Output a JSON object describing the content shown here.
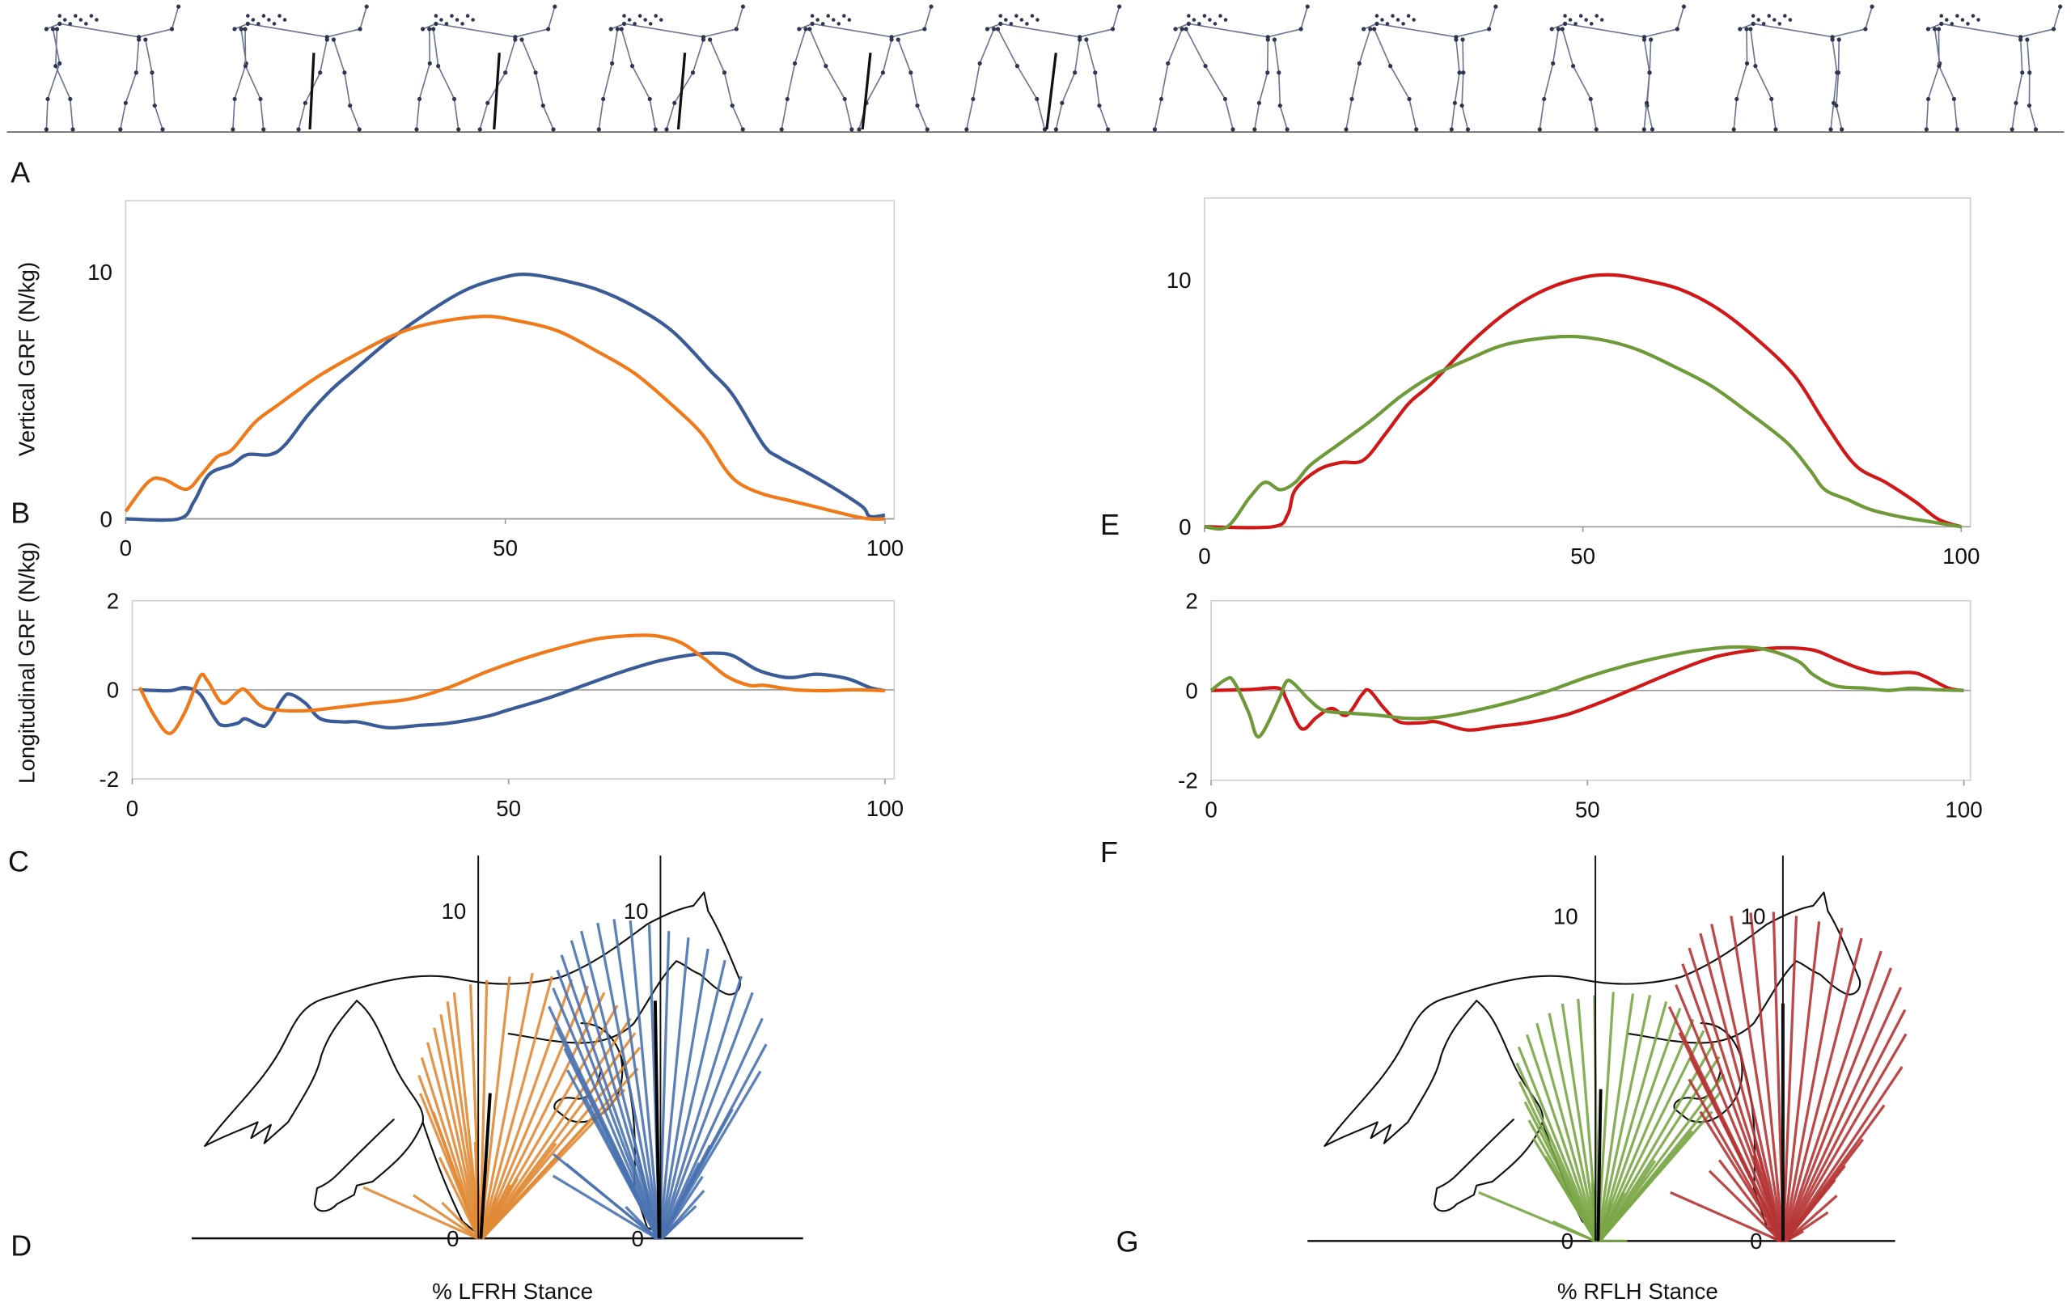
{
  "panel_labels": {
    "A": "A",
    "B": "B",
    "C": "C",
    "D": "D",
    "E": "E",
    "F": "F",
    "G": "G"
  },
  "colors": {
    "blue": "#3b5b98",
    "orange": "#f07a1a",
    "red": "#d01818",
    "green": "#6e9a3a",
    "fan_blue": "#4a72b0",
    "fan_orange": "#e08a35",
    "fan_red": "#b53434",
    "fan_green": "#7aa646"
  },
  "icons": {
    "stick_figures": "horse-stick-figure-sequence",
    "horse_drawing": "horse-outline"
  },
  "chart_data": [
    {
      "id": "B",
      "type": "line",
      "ylabel": "Vertical GRF (N/kg)",
      "xlabel": "",
      "xlim": [
        0,
        100
      ],
      "ylim": [
        0,
        13
      ],
      "xticks": [
        "0",
        "50",
        "100"
      ],
      "yticks": [
        "0",
        "10"
      ],
      "grid": false,
      "series": [
        {
          "color": "#3b5b98",
          "x": [
            0,
            7,
            9,
            11,
            14,
            16,
            19,
            21,
            24,
            27,
            30,
            35,
            40,
            45,
            50,
            53,
            57,
            62,
            67,
            72,
            77,
            80,
            84,
            86,
            89,
            93,
            97,
            98,
            100
          ],
          "y": [
            0,
            0,
            0.7,
            1.8,
            2.2,
            2.6,
            2.6,
            3.0,
            4.2,
            5.2,
            6.0,
            7.3,
            8.4,
            9.3,
            9.8,
            9.9,
            9.7,
            9.3,
            8.6,
            7.6,
            6.0,
            5.0,
            3.0,
            2.5,
            2.0,
            1.3,
            0.5,
            0.1,
            0.15
          ]
        },
        {
          "color": "#f07a1a",
          "x": [
            0,
            3,
            5,
            8,
            10,
            12,
            14,
            17,
            20,
            25,
            30,
            35,
            40,
            47,
            52,
            57,
            62,
            67,
            72,
            76,
            79,
            81,
            84,
            88,
            92,
            96,
            98,
            100
          ],
          "y": [
            0.3,
            1.5,
            1.6,
            1.2,
            1.8,
            2.5,
            2.8,
            3.9,
            4.6,
            5.7,
            6.6,
            7.4,
            7.9,
            8.2,
            8.0,
            7.6,
            6.8,
            5.9,
            4.6,
            3.4,
            2.0,
            1.4,
            1.0,
            0.7,
            0.4,
            0.1,
            0,
            0
          ]
        }
      ]
    },
    {
      "id": "C",
      "type": "line",
      "ylabel": "Longitudinal GRF (N/kg)",
      "xlabel": "",
      "xlim": [
        0,
        100
      ],
      "ylim": [
        -2,
        2
      ],
      "xticks": [
        "0",
        "50",
        "100"
      ],
      "yticks": [
        "-2",
        "0",
        "2"
      ],
      "grid": false,
      "series": [
        {
          "color": "#3b5b98",
          "x": [
            1,
            5,
            7,
            9,
            11,
            12,
            14,
            15,
            17,
            18,
            20,
            21,
            23,
            25,
            28,
            30,
            34,
            38,
            42,
            47,
            50,
            55,
            60,
            65,
            70,
            75,
            78,
            80,
            83,
            86,
            88,
            91,
            95,
            98,
            100
          ],
          "y": [
            0,
            -0.02,
            0.05,
            -0.1,
            -0.65,
            -0.8,
            -0.75,
            -0.65,
            -0.8,
            -0.75,
            -0.2,
            -0.1,
            -0.3,
            -0.65,
            -0.72,
            -0.72,
            -0.85,
            -0.8,
            -0.75,
            -0.6,
            -0.45,
            -0.2,
            0.1,
            0.4,
            0.65,
            0.8,
            0.82,
            0.75,
            0.45,
            0.3,
            0.28,
            0.35,
            0.25,
            0.05,
            -0.02
          ]
        },
        {
          "color": "#f07a1a",
          "x": [
            1,
            3,
            5,
            7,
            9,
            10,
            12,
            14,
            15,
            17,
            19,
            23,
            27,
            32,
            37,
            42,
            47,
            52,
            57,
            62,
            67,
            70,
            73,
            76,
            79,
            82,
            84,
            88,
            92,
            96,
            100
          ],
          "y": [
            0.05,
            -0.6,
            -0.98,
            -0.5,
            0.3,
            0.2,
            -0.3,
            -0.05,
            0,
            -0.35,
            -0.45,
            -0.47,
            -0.4,
            -0.3,
            -0.2,
            0.05,
            0.4,
            0.7,
            0.95,
            1.15,
            1.22,
            1.2,
            1.05,
            0.7,
            0.3,
            0.1,
            0.1,
            0,
            -0.02,
            0,
            -0.02
          ]
        }
      ]
    },
    {
      "id": "E",
      "type": "line",
      "ylabel": "",
      "xlabel": "",
      "xlim": [
        0,
        100
      ],
      "ylim": [
        0,
        13
      ],
      "xticks": [
        "0",
        "50",
        "100"
      ],
      "yticks": [
        "0",
        "10"
      ],
      "grid": false,
      "series": [
        {
          "color": "#d01818",
          "x": [
            0,
            9,
            11,
            12,
            15,
            18,
            21,
            24,
            27,
            30,
            35,
            40,
            45,
            50,
            54,
            58,
            63,
            68,
            73,
            78,
            82,
            86,
            90,
            94,
            97,
            100
          ],
          "y": [
            0,
            0,
            0.5,
            1.5,
            2.3,
            2.6,
            2.7,
            3.8,
            5.0,
            5.8,
            7.4,
            8.7,
            9.6,
            10.1,
            10.2,
            10.0,
            9.6,
            8.8,
            7.6,
            6.1,
            4.2,
            2.5,
            1.8,
            1.0,
            0.3,
            0
          ]
        },
        {
          "color": "#6e9a3a",
          "x": [
            0,
            3,
            6,
            8,
            10,
            12,
            14,
            18,
            22,
            26,
            30,
            35,
            40,
            47,
            52,
            57,
            62,
            67,
            72,
            77,
            80,
            82,
            85,
            88,
            92,
            96,
            100
          ],
          "y": [
            0,
            0,
            1.2,
            1.8,
            1.5,
            1.8,
            2.5,
            3.4,
            4.3,
            5.3,
            6.1,
            6.8,
            7.4,
            7.7,
            7.6,
            7.2,
            6.5,
            5.7,
            4.6,
            3.4,
            2.3,
            1.5,
            1.1,
            0.7,
            0.4,
            0.2,
            0
          ]
        }
      ]
    },
    {
      "id": "F",
      "type": "line",
      "ylabel": "",
      "xlabel": "",
      "xlim": [
        0,
        100
      ],
      "ylim": [
        -2,
        2
      ],
      "xticks": [
        "0",
        "50",
        "100"
      ],
      "yticks": [
        "-2",
        "0",
        "2"
      ],
      "grid": false,
      "series": [
        {
          "color": "#d01818",
          "x": [
            0,
            5,
            9,
            10,
            12,
            14,
            16,
            18,
            20,
            21,
            23,
            25,
            28,
            30,
            34,
            38,
            42,
            47,
            52,
            57,
            62,
            67,
            72,
            76,
            80,
            83,
            86,
            89,
            93,
            95,
            98,
            100
          ],
          "y": [
            0,
            0.02,
            0.05,
            -0.2,
            -0.85,
            -0.6,
            -0.4,
            -0.55,
            -0.1,
            0,
            -0.4,
            -0.7,
            -0.72,
            -0.7,
            -0.88,
            -0.8,
            -0.72,
            -0.55,
            -0.25,
            0.1,
            0.45,
            0.75,
            0.9,
            0.95,
            0.9,
            0.7,
            0.5,
            0.38,
            0.4,
            0.3,
            0.05,
            0
          ]
        },
        {
          "color": "#6e9a3a",
          "x": [
            0,
            2,
            3,
            5,
            6,
            7,
            9,
            10,
            11,
            13,
            15,
            18,
            22,
            26,
            30,
            35,
            40,
            45,
            50,
            55,
            60,
            65,
            70,
            74,
            78,
            80,
            83,
            87,
            90,
            93,
            96,
            100
          ],
          "y": [
            0,
            0.25,
            0.2,
            -0.5,
            -1.0,
            -0.9,
            -0.2,
            0.2,
            0.15,
            -0.2,
            -0.45,
            -0.5,
            -0.55,
            -0.62,
            -0.6,
            -0.45,
            -0.25,
            0,
            0.3,
            0.55,
            0.75,
            0.9,
            0.97,
            0.9,
            0.65,
            0.35,
            0.1,
            0.05,
            0,
            0.05,
            0.02,
            0
          ]
        }
      ]
    }
  ],
  "vector_diagrams": [
    {
      "id": "D",
      "type": "force-vector-fan",
      "xlabel": "% LFRH Stance",
      "axis_ticks": [
        "0",
        "10"
      ],
      "fans": [
        {
          "color": "#e08a35",
          "source_chart": "B/C series 2"
        },
        {
          "color": "#4a72b0",
          "source_chart": "B/C series 1"
        }
      ]
    },
    {
      "id": "G",
      "type": "force-vector-fan",
      "xlabel": "% RFLH Stance",
      "axis_ticks": [
        "0",
        "10"
      ],
      "fans": [
        {
          "color": "#7aa646",
          "source_chart": "E/F series 2"
        },
        {
          "color": "#b53434",
          "source_chart": "E/F series 1"
        }
      ]
    }
  ]
}
